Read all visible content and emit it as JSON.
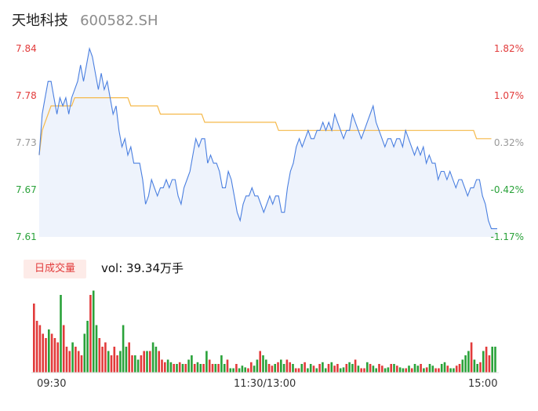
{
  "stock": {
    "name": "天地科技",
    "code": "600582.SH"
  },
  "colors": {
    "price_line": "#4a7fe0",
    "price_fill": "#eef3fc",
    "avg_line": "#f5b94a",
    "up": "#e23b3b",
    "down": "#2aa23a",
    "neutral": "#999999"
  },
  "volume": {
    "badge_label": "日成交量",
    "text": "vol: 39.34万手"
  },
  "time_labels": [
    "09:30",
    "11:30/13:00",
    "15:00"
  ],
  "chart_data": [
    {
      "type": "line",
      "title": "",
      "y_ticks_left": [
        "7.84",
        "7.78",
        "7.73",
        "7.67",
        "7.61"
      ],
      "y_ticks_right": [
        "1.82%",
        "1.07%",
        "0.32%",
        "-0.42%",
        "-1.17%"
      ],
      "ylim": [
        7.61,
        7.84
      ],
      "x_ticks": [
        "09:30",
        "11:30/13:00",
        "15:00"
      ],
      "series": [
        {
          "name": "",
          "values": [
            7.71,
            7.76,
            7.78,
            7.8,
            7.8,
            7.78,
            7.76,
            7.78,
            7.77,
            7.78,
            7.76,
            7.78,
            7.79,
            7.8,
            7.82,
            7.8,
            7.82,
            7.84,
            7.83,
            7.81,
            7.79,
            7.81,
            7.79,
            7.8,
            7.78,
            7.76,
            7.77,
            7.74,
            7.72,
            7.73,
            7.71,
            7.72,
            7.7,
            7.7,
            7.7,
            7.68,
            7.65,
            7.66,
            7.68,
            7.67,
            7.66,
            7.67,
            7.67,
            7.68,
            7.67,
            7.68,
            7.68,
            7.66,
            7.65,
            7.67,
            7.68,
            7.69,
            7.71,
            7.73,
            7.72,
            7.73,
            7.73,
            7.7,
            7.71,
            7.7,
            7.7,
            7.69,
            7.67,
            7.67,
            7.69,
            7.68,
            7.66,
            7.64,
            7.63,
            7.65,
            7.66,
            7.66,
            7.67,
            7.66,
            7.66,
            7.65,
            7.64,
            7.65,
            7.66,
            7.65,
            7.66,
            7.66,
            7.64,
            7.64,
            7.67,
            7.69,
            7.7,
            7.72,
            7.73,
            7.72,
            7.73,
            7.74,
            7.73,
            7.73,
            7.74,
            7.74,
            7.75,
            7.74,
            7.75,
            7.74,
            7.76,
            7.75,
            7.74,
            7.73,
            7.74,
            7.74,
            7.76,
            7.75,
            7.74,
            7.73,
            7.74,
            7.75,
            7.76,
            7.77,
            7.75,
            7.74,
            7.73,
            7.72,
            7.73,
            7.73,
            7.72,
            7.73,
            7.73,
            7.72,
            7.74,
            7.73,
            7.72,
            7.71,
            7.72,
            7.71,
            7.72,
            7.7,
            7.71,
            7.7,
            7.7,
            7.68,
            7.69,
            7.69,
            7.68,
            7.69,
            7.68,
            7.67,
            7.68,
            7.68,
            7.67,
            7.66,
            7.67,
            7.67,
            7.68,
            7.68,
            7.66,
            7.65,
            7.63,
            7.62,
            7.62,
            7.62
          ]
        },
        {
          "name": "",
          "values": [
            7.71,
            7.74,
            7.75,
            7.76,
            7.77,
            7.77,
            7.77,
            7.77,
            7.77,
            7.77,
            7.77,
            7.77,
            7.78,
            7.78,
            7.78,
            7.78,
            7.78,
            7.78,
            7.78,
            7.78,
            7.78,
            7.78,
            7.78,
            7.78,
            7.78,
            7.78,
            7.78,
            7.78,
            7.78,
            7.78,
            7.78,
            7.77,
            7.77,
            7.77,
            7.77,
            7.77,
            7.77,
            7.77,
            7.77,
            7.77,
            7.77,
            7.76,
            7.76,
            7.76,
            7.76,
            7.76,
            7.76,
            7.76,
            7.76,
            7.76,
            7.76,
            7.76,
            7.76,
            7.76,
            7.76,
            7.76,
            7.75,
            7.75,
            7.75,
            7.75,
            7.75,
            7.75,
            7.75,
            7.75,
            7.75,
            7.75,
            7.75,
            7.75,
            7.75,
            7.75,
            7.75,
            7.75,
            7.75,
            7.75,
            7.75,
            7.75,
            7.75,
            7.75,
            7.75,
            7.75,
            7.75,
            7.74,
            7.74,
            7.74,
            7.74,
            7.74,
            7.74,
            7.74,
            7.74,
            7.74,
            7.74,
            7.74,
            7.74,
            7.74,
            7.74,
            7.74,
            7.74,
            7.74,
            7.74,
            7.74,
            7.74,
            7.74,
            7.74,
            7.74,
            7.74,
            7.74,
            7.74,
            7.74,
            7.74,
            7.74,
            7.74,
            7.74,
            7.74,
            7.74,
            7.74,
            7.74,
            7.74,
            7.74,
            7.74,
            7.74,
            7.74,
            7.74,
            7.74,
            7.74,
            7.74,
            7.74,
            7.74,
            7.74,
            7.74,
            7.74,
            7.74,
            7.74,
            7.74,
            7.74,
            7.74,
            7.74,
            7.74,
            7.74,
            7.74,
            7.74,
            7.74,
            7.74,
            7.74,
            7.74,
            7.74,
            7.74,
            7.74,
            7.74,
            7.73,
            7.73,
            7.73,
            7.73,
            7.73,
            7.73
          ]
        }
      ]
    },
    {
      "type": "bar",
      "title": "",
      "ylabel": "",
      "values": [
        0.8,
        0.6,
        0.55,
        0.45,
        0.4,
        0.5,
        0.45,
        0.4,
        0.35,
        0.9,
        0.55,
        0.3,
        0.25,
        0.35,
        0.3,
        0.25,
        0.2,
        0.45,
        0.6,
        0.9,
        0.95,
        0.55,
        0.4,
        0.3,
        0.35,
        0.25,
        0.2,
        0.3,
        0.2,
        0.25,
        0.55,
        0.3,
        0.35,
        0.2,
        0.2,
        0.15,
        0.2,
        0.25,
        0.25,
        0.25,
        0.35,
        0.3,
        0.25,
        0.15,
        0.12,
        0.15,
        0.12,
        0.1,
        0.1,
        0.12,
        0.1,
        0.1,
        0.15,
        0.2,
        0.1,
        0.12,
        0.1,
        0.1,
        0.25,
        0.15,
        0.1,
        0.1,
        0.1,
        0.2,
        0.1,
        0.15,
        0.05,
        0.05,
        0.1,
        0.05,
        0.08,
        0.06,
        0.05,
        0.12,
        0.08,
        0.15,
        0.25,
        0.2,
        0.15,
        0.1,
        0.08,
        0.1,
        0.12,
        0.15,
        0.1,
        0.15,
        0.12,
        0.1,
        0.05,
        0.05,
        0.1,
        0.12,
        0.05,
        0.1,
        0.08,
        0.05,
        0.1,
        0.12,
        0.05,
        0.1,
        0.12,
        0.08,
        0.1,
        0.05,
        0.06,
        0.1,
        0.12,
        0.1,
        0.15,
        0.08,
        0.05,
        0.05,
        0.12,
        0.1,
        0.08,
        0.05,
        0.1,
        0.08,
        0.05,
        0.06,
        0.1,
        0.1,
        0.08,
        0.06,
        0.05,
        0.05,
        0.08,
        0.05,
        0.1,
        0.08,
        0.1,
        0.05,
        0.06,
        0.1,
        0.08,
        0.05,
        0.05,
        0.1,
        0.12,
        0.08,
        0.05,
        0.05,
        0.08,
        0.1,
        0.15,
        0.2,
        0.25,
        0.35,
        0.15,
        0.1,
        0.12,
        0.25,
        0.3,
        0.2,
        0.3,
        0.3
      ],
      "up_down": [
        1,
        1,
        1,
        1,
        1,
        0,
        1,
        1,
        1,
        0,
        1,
        1,
        1,
        0,
        1,
        1,
        1,
        0,
        0,
        1,
        0,
        0,
        1,
        1,
        1,
        0,
        1,
        1,
        1,
        0,
        0,
        0,
        1,
        1,
        0,
        0,
        1,
        1,
        0,
        1,
        0,
        0,
        1,
        1,
        1,
        0,
        0,
        1,
        0,
        1,
        0,
        1,
        0,
        0,
        1,
        0,
        0,
        1,
        0,
        1,
        1,
        0,
        1,
        0,
        0,
        1,
        0,
        0,
        1,
        0,
        0,
        0,
        1,
        1,
        0,
        0,
        1,
        0,
        0,
        1,
        1,
        0,
        1,
        0,
        0,
        1,
        1,
        0,
        1,
        1,
        0,
        1,
        0,
        0,
        1,
        0,
        1,
        0,
        0,
        1,
        0,
        1,
        1,
        0,
        0,
        1,
        0,
        0,
        1,
        0,
        1,
        1,
        0,
        1,
        0,
        0,
        1,
        1,
        0,
        0,
        1,
        0,
        1,
        0,
        0,
        1,
        0,
        1,
        0,
        0,
        1,
        0,
        1,
        0,
        0,
        1,
        1,
        0,
        0,
        1,
        0,
        0,
        1,
        1,
        0,
        0,
        0,
        1,
        0,
        0,
        1,
        0,
        1,
        1
      ]
    }
  ]
}
